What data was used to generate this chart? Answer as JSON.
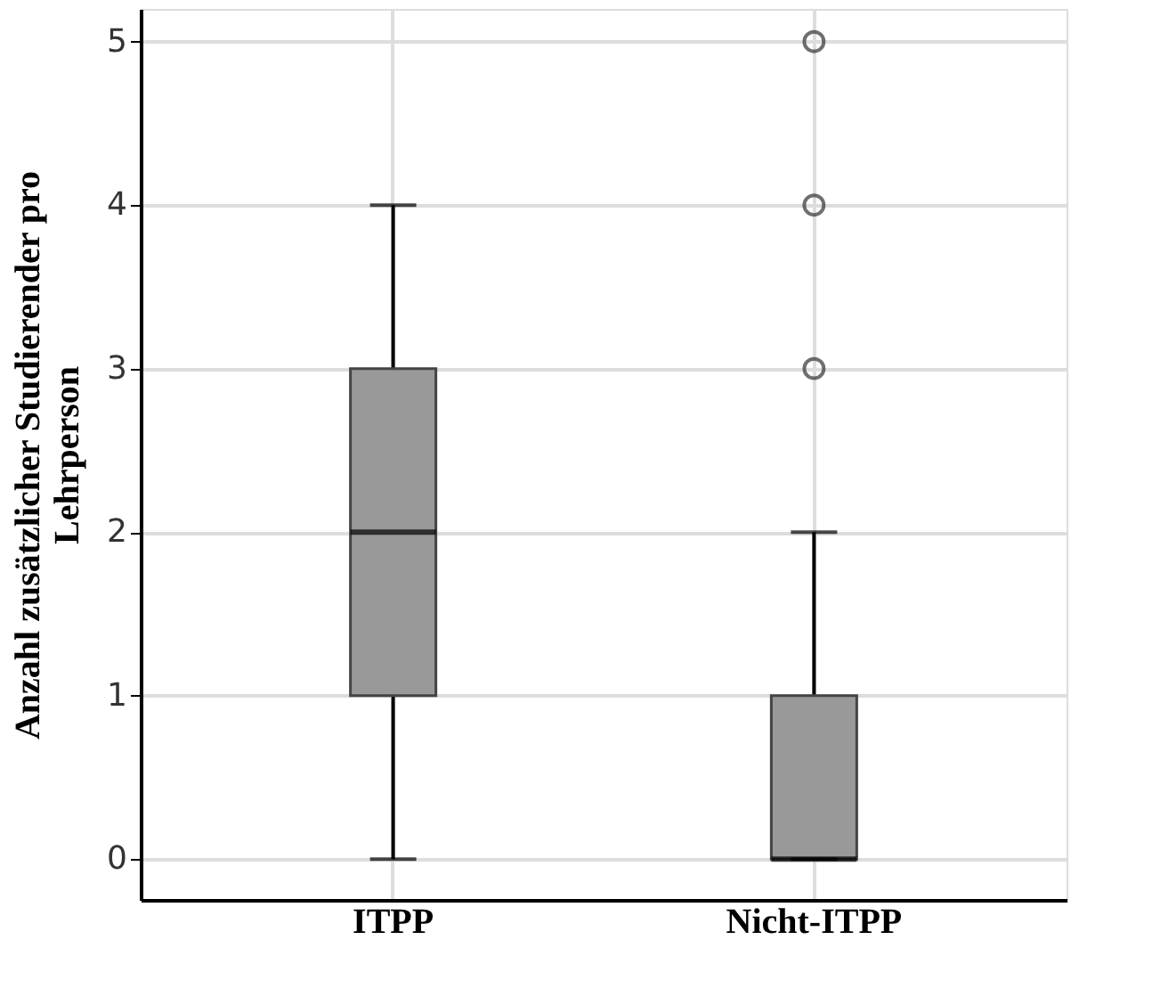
{
  "chart_data": {
    "type": "box",
    "ylabel": "Anzahl zusätzlicher Studierender pro Lehrperson",
    "categories": [
      "ITPP",
      "Nicht-ITPP"
    ],
    "color": "#999999",
    "boxes": [
      {
        "low": 0,
        "q1": 1,
        "median": 2,
        "q3": 3,
        "high": 4
      },
      {
        "low": 0,
        "q1": 0,
        "median": 0,
        "q3": 1,
        "high": 2,
        "outliers": [
          3,
          4,
          5
        ]
      }
    ],
    "ylim": [
      -0.25,
      5.2
    ],
    "yticks": [
      0,
      1,
      2,
      3,
      4,
      5
    ],
    "grid": true
  }
}
